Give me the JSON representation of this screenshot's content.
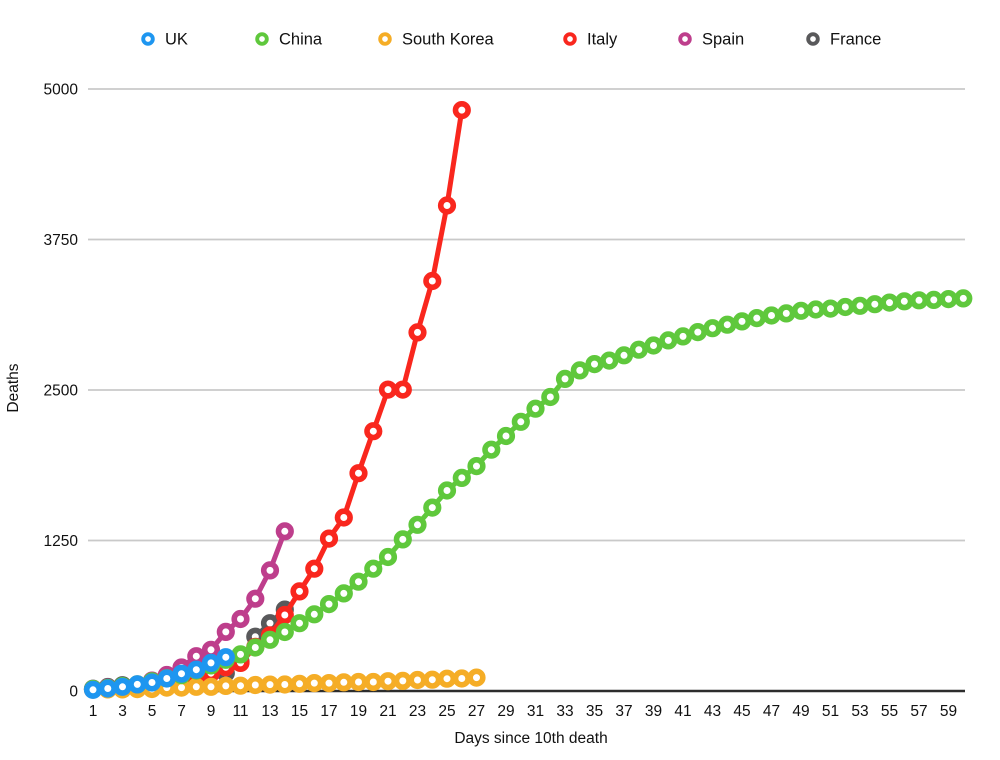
{
  "chart_data": {
    "type": "line",
    "title": "",
    "xlabel": "Days since 10th death",
    "ylabel": "Deaths",
    "x_start": 1,
    "xlim": [
      1,
      60
    ],
    "ylim": [
      0,
      5000
    ],
    "grid": true,
    "legend_position": "top",
    "x_ticks": [
      1,
      3,
      5,
      7,
      9,
      11,
      13,
      15,
      17,
      19,
      21,
      23,
      25,
      27,
      29,
      31,
      33,
      35,
      37,
      39,
      41,
      43,
      45,
      47,
      49,
      51,
      53,
      55,
      57,
      59
    ],
    "y_ticks": [
      0,
      1250,
      2500,
      3750,
      5000
    ],
    "marker_style": "open-circle",
    "series": [
      {
        "name": "UK",
        "color": "#1E96F0",
        "values": [
          10,
          21,
          35,
          55,
          71,
          104,
          144,
          177,
          233,
          281
        ]
      },
      {
        "name": "China",
        "color": "#5FC83C",
        "values": [
          17,
          25,
          41,
          56,
          80,
          106,
          132,
          170,
          213,
          259,
          304,
          361,
          425,
          490,
          563,
          637,
          722,
          811,
          908,
          1016,
          1113,
          1259,
          1380,
          1523,
          1665,
          1770,
          1868,
          2004,
          2118,
          2236,
          2345,
          2442,
          2592,
          2663,
          2715,
          2744,
          2788,
          2835,
          2870,
          2912,
          2945,
          2981,
          3013,
          3042,
          3070,
          3097,
          3119,
          3136,
          3158,
          3169,
          3176,
          3189,
          3199,
          3213,
          3226,
          3237,
          3245,
          3248,
          3255,
          3261
        ]
      },
      {
        "name": "South Korea",
        "color": "#F5AD26",
        "values": [
          12,
          13,
          13,
          16,
          17,
          28,
          28,
          35,
          35,
          42,
          44,
          50,
          53,
          54,
          60,
          66,
          66,
          72,
          75,
          75,
          81,
          84,
          91,
          94,
          102,
          104,
          111
        ]
      },
      {
        "name": "Italy",
        "color": "#F9271E",
        "values": [
          12,
          17,
          21,
          29,
          34,
          52,
          79,
          107,
          148,
          197,
          233,
          366,
          463,
          631,
          827,
          1016,
          1266,
          1441,
          1809,
          2158,
          2503,
          2503,
          2978,
          3405,
          4032,
          4825
        ]
      },
      {
        "name": "Spain",
        "color": "#BE3E8C",
        "values": [
          17,
          28,
          35,
          54,
          86,
          133,
          195,
          289,
          342,
          491,
          598,
          767,
          1002,
          1326
        ]
      },
      {
        "name": "France",
        "color": "#59595B",
        "values": [
          19,
          33,
          48,
          48,
          79,
          91,
          91,
          149,
          149,
          149,
          244,
          451,
          563,
          676
        ]
      }
    ]
  }
}
